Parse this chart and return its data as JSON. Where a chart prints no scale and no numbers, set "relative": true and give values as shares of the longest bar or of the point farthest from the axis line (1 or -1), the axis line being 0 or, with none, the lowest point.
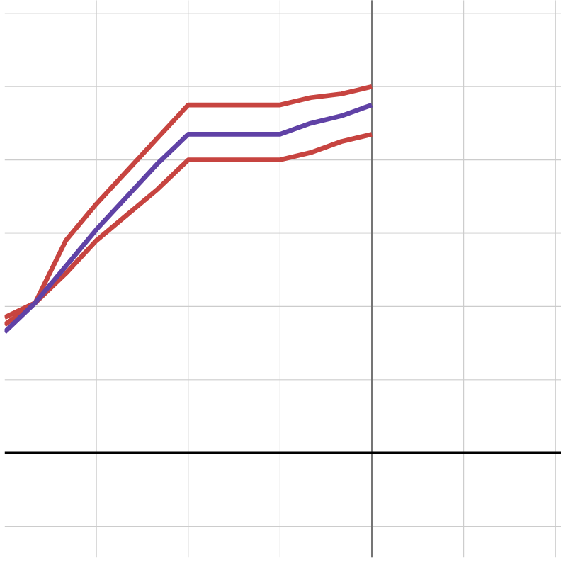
{
  "chart_data": {
    "type": "line",
    "relative": true,
    "grid": true,
    "line_style": "solid",
    "marker": "none",
    "categories": [
      null,
      null,
      null,
      null,
      null,
      null,
      null,
      null,
      null,
      null,
      null,
      null,
      null
    ],
    "series": [
      {
        "color": "#c74440",
        "values": [
          0.35,
          0.41,
          0.49,
          0.58,
          0.65,
          0.72,
          0.8,
          0.8,
          0.8,
          0.8,
          0.82,
          0.85,
          0.87
        ]
      },
      {
        "color": "#c74440",
        "values": [
          0.37,
          0.41,
          0.58,
          0.68,
          0.77,
          0.86,
          0.95,
          0.95,
          0.95,
          0.95,
          0.97,
          0.98,
          1.0
        ]
      },
      {
        "color": "#6042a6",
        "values": [
          0.33,
          0.41,
          0.51,
          0.61,
          0.7,
          0.79,
          0.87,
          0.87,
          0.87,
          0.87,
          0.9,
          0.92,
          0.95
        ]
      }
    ]
  }
}
